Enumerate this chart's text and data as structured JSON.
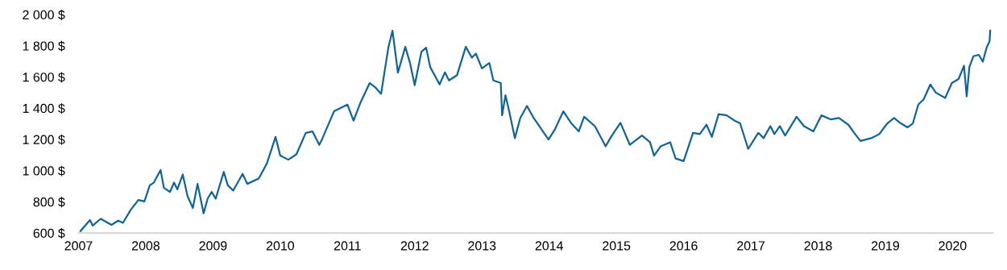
{
  "chart_data": {
    "type": "line",
    "x": [
      2007.03,
      2007.17,
      2007.21,
      2007.33,
      2007.49,
      2007.59,
      2007.66,
      2007.78,
      2007.89,
      2007.98,
      2008.06,
      2008.12,
      2008.22,
      2008.27,
      2008.36,
      2008.42,
      2008.47,
      2008.55,
      2008.62,
      2008.7,
      2008.77,
      2008.86,
      2008.92,
      2008.98,
      2009.04,
      2009.16,
      2009.22,
      2009.3,
      2009.44,
      2009.51,
      2009.68,
      2009.8,
      2009.93,
      2010.0,
      2010.12,
      2010.24,
      2010.38,
      2010.48,
      2010.58,
      2010.62,
      2010.8,
      2011.0,
      2011.09,
      2011.19,
      2011.33,
      2011.41,
      2011.5,
      2011.61,
      2011.67,
      2011.75,
      2011.86,
      2011.93,
      2012.0,
      2012.1,
      2012.17,
      2012.23,
      2012.37,
      2012.45,
      2012.51,
      2012.63,
      2012.76,
      2012.85,
      2012.91,
      2013.0,
      2013.11,
      2013.17,
      2013.28,
      2013.3,
      2013.35,
      2013.41,
      2013.49,
      2013.57,
      2013.67,
      2013.77,
      2013.99,
      2014.09,
      2014.21,
      2014.33,
      2014.44,
      2014.52,
      2014.68,
      2014.84,
      2014.92,
      2015.06,
      2015.2,
      2015.38,
      2015.5,
      2015.56,
      2015.66,
      2015.8,
      2015.88,
      2016.0,
      2016.14,
      2016.24,
      2016.34,
      2016.42,
      2016.52,
      2016.64,
      2016.76,
      2016.84,
      2016.96,
      2017.11,
      2017.19,
      2017.29,
      2017.35,
      2017.43,
      2017.51,
      2017.68,
      2017.79,
      2017.93,
      2018.05,
      2018.19,
      2018.31,
      2018.45,
      2018.55,
      2018.63,
      2018.79,
      2018.91,
      2019.03,
      2019.13,
      2019.23,
      2019.33,
      2019.41,
      2019.49,
      2019.57,
      2019.67,
      2019.75,
      2019.89,
      2019.99,
      2020.09,
      2020.17,
      2020.21,
      2020.25,
      2020.31,
      2020.39,
      2020.45,
      2020.51,
      2020.55,
      2020.56
    ],
    "values": [
      613,
      683,
      648,
      691,
      652,
      679,
      665,
      751,
      812,
      803,
      906,
      923,
      1004,
      889,
      863,
      923,
      880,
      975,
      838,
      760,
      915,
      726,
      820,
      863,
      820,
      992,
      906,
      872,
      979,
      915,
      949,
      1044,
      1216,
      1096,
      1070,
      1104,
      1242,
      1251,
      1165,
      1199,
      1380,
      1423,
      1320,
      1432,
      1561,
      1535,
      1492,
      1793,
      1897,
      1628,
      1793,
      1690,
      1547,
      1762,
      1788,
      1664,
      1552,
      1630,
      1578,
      1612,
      1793,
      1724,
      1750,
      1655,
      1690,
      1578,
      1561,
      1354,
      1483,
      1371,
      1208,
      1337,
      1414,
      1337,
      1199,
      1268,
      1380,
      1303,
      1251,
      1345,
      1285,
      1156,
      1216,
      1306,
      1165,
      1225,
      1182,
      1096,
      1156,
      1182,
      1078,
      1061,
      1242,
      1234,
      1294,
      1216,
      1362,
      1354,
      1320,
      1303,
      1139,
      1242,
      1208,
      1285,
      1234,
      1285,
      1225,
      1345,
      1285,
      1251,
      1354,
      1328,
      1337,
      1294,
      1234,
      1190,
      1208,
      1234,
      1303,
      1337,
      1303,
      1277,
      1303,
      1423,
      1457,
      1552,
      1500,
      1466,
      1561,
      1587,
      1672,
      1475,
      1664,
      1733,
      1742,
      1698,
      1793,
      1828,
      1897
    ],
    "color": "#0f6499",
    "xlim": [
      2007,
      2020.6
    ],
    "xticks": [
      2007,
      2008,
      2009,
      2010,
      2011,
      2012,
      2013,
      2014,
      2015,
      2016,
      2017,
      2018,
      2019,
      2020
    ],
    "ylim": [
      600,
      2000
    ],
    "yticks": [
      {
        "value": 600,
        "label": "600 $"
      },
      {
        "value": 800,
        "label": "800 $"
      },
      {
        "value": 1000,
        "label": "1 000 $"
      },
      {
        "value": 1200,
        "label": "1 200 $"
      },
      {
        "value": 1400,
        "label": "1 400 $"
      },
      {
        "value": 1600,
        "label": "1 600 $"
      },
      {
        "value": 1800,
        "label": "1 800 $"
      },
      {
        "value": 2000,
        "label": "2 000 $"
      }
    ],
    "grid": false,
    "legend": false,
    "marker": "none",
    "line_style": "solid"
  }
}
